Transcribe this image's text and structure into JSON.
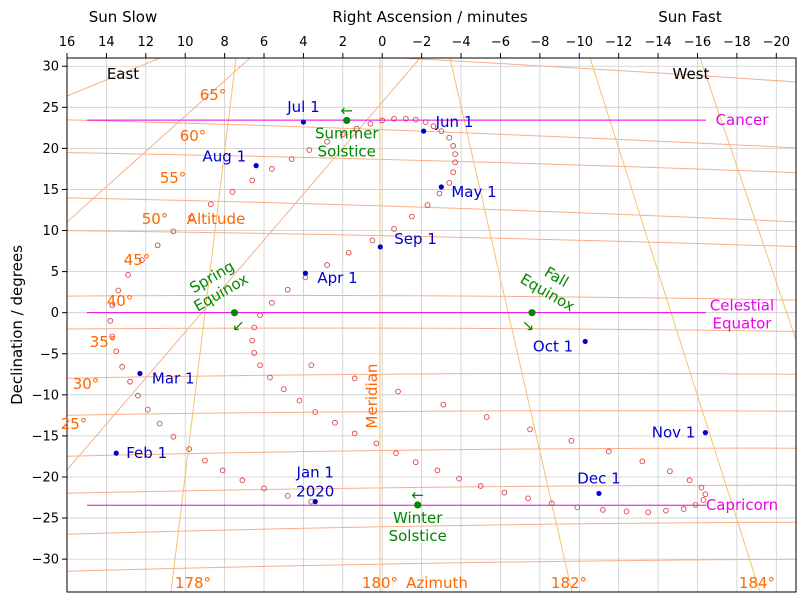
{
  "chart_data": {
    "type": "scatter",
    "title": "Right Ascension / minutes",
    "ylabel": "Declination / degrees",
    "corner_labels": {
      "left": "Sun Slow",
      "right": "Sun Fast"
    },
    "horizon_labels": {
      "east": "East",
      "west": "West"
    },
    "meridian_label": "Meridian",
    "altitude_caption": "Altitude",
    "azimuth_caption": "Azimuth",
    "xlim": [
      16,
      -21
    ],
    "ylim": [
      -34,
      31
    ],
    "x_ticks": [
      16,
      14,
      12,
      10,
      8,
      6,
      4,
      2,
      0,
      -2,
      -4,
      -6,
      -8,
      -10,
      -12,
      -14,
      -16,
      -18,
      -20
    ],
    "x_tick_labels": [
      "16",
      "14",
      "12",
      "10",
      "8",
      "6",
      "4",
      "2",
      "0",
      "−2",
      "−4",
      "−6",
      "−8",
      "−10",
      "−12",
      "−14",
      "−16",
      "−18",
      "−20"
    ],
    "y_ticks": [
      30,
      25,
      20,
      15,
      10,
      5,
      0,
      -5,
      -10,
      -15,
      -20,
      -25,
      -30
    ],
    "y_tick_labels": [
      "30",
      "25",
      "20",
      "15",
      "10",
      "5",
      "0",
      "−5",
      "−10",
      "−15",
      "−20",
      "−25",
      "−30"
    ],
    "grid": true,
    "analemma": {
      "x": [
        3.6,
        4.8,
        6.0,
        7.1,
        8.1,
        9.0,
        9.8,
        10.6,
        11.3,
        11.9,
        12.4,
        12.8,
        13.2,
        13.5,
        13.7,
        13.8,
        13.7,
        13.4,
        12.9,
        12.2,
        11.4,
        10.6,
        9.7,
        8.7,
        7.6,
        6.6,
        5.6,
        4.6,
        3.7,
        2.8,
        2.0,
        1.3,
        0.6,
        0.0,
        -0.6,
        -1.2,
        -1.7,
        -2.2,
        -2.6,
        -3.0,
        -3.4,
        -3.6,
        -3.7,
        -3.7,
        -3.6,
        -3.4,
        -2.9,
        -2.3,
        -1.5,
        -0.6,
        0.5,
        1.7,
        2.8,
        3.9,
        4.8,
        5.6,
        6.2,
        6.5,
        6.6,
        6.5,
        6.2,
        5.7,
        5.0,
        4.2,
        3.4,
        2.4,
        1.4,
        0.3,
        -0.7,
        -1.7,
        -2.8,
        -3.9,
        -5.0,
        -6.2,
        -7.4,
        -8.6,
        -9.9,
        -11.2,
        -12.4,
        -13.5,
        -14.4,
        -15.3,
        -15.9,
        -16.3,
        -16.4,
        -16.2,
        -15.6,
        -14.6,
        -13.2,
        -11.5,
        -9.6,
        -7.5,
        -5.3,
        -3.1,
        -0.8,
        1.4,
        3.6
      ],
      "y": [
        -23.0,
        -22.3,
        -21.4,
        -20.4,
        -19.2,
        -18.0,
        -16.6,
        -15.1,
        -13.5,
        -11.8,
        -10.1,
        -8.4,
        -6.6,
        -4.7,
        -2.9,
        -1.0,
        0.9,
        2.7,
        4.6,
        6.4,
        8.2,
        9.9,
        11.6,
        13.2,
        14.7,
        16.1,
        17.5,
        18.7,
        19.8,
        20.8,
        21.7,
        22.4,
        23.0,
        23.4,
        23.6,
        23.6,
        23.5,
        23.2,
        22.7,
        22.1,
        21.3,
        20.3,
        19.3,
        18.3,
        17.1,
        15.8,
        14.5,
        13.1,
        11.7,
        10.2,
        8.8,
        7.3,
        5.8,
        4.3,
        2.8,
        1.2,
        -0.3,
        -1.8,
        -3.4,
        -4.9,
        -6.4,
        -7.9,
        -9.3,
        -10.7,
        -12.1,
        -13.4,
        -14.7,
        -15.9,
        -17.1,
        -18.2,
        -19.2,
        -20.2,
        -21.1,
        -21.9,
        -22.6,
        -23.2,
        -23.7,
        -24.0,
        -24.2,
        -24.3,
        -24.1,
        -23.9,
        -23.4,
        -22.8,
        -22.1,
        -21.3,
        -20.4,
        -19.3,
        -18.1,
        -16.9,
        -15.6,
        -14.2,
        -12.7,
        -11.2,
        -9.6,
        -8.0,
        -6.4
      ],
      "color": "#dd4444"
    },
    "month_points": [
      {
        "label": "Jan 1",
        "label2": "2020",
        "x": 3.4,
        "y": -23.0,
        "color": "#0000cc"
      },
      {
        "label": "Feb 1",
        "x": 13.5,
        "y": -17.1,
        "color": "#0000cc"
      },
      {
        "label": "Mar 1",
        "x": 12.3,
        "y": -7.4,
        "color": "#0000cc"
      },
      {
        "label": "Apr 1",
        "x": 3.9,
        "y": 4.8,
        "color": "#0000cc"
      },
      {
        "label": "May 1",
        "x": -3.0,
        "y": 15.3,
        "color": "#0000cc"
      },
      {
        "label": "Jun 1",
        "x": -2.1,
        "y": 22.1,
        "color": "#0000cc"
      },
      {
        "label": "Jul 1",
        "x": 4.0,
        "y": 23.2,
        "color": "#0000cc"
      },
      {
        "label": "Aug 1",
        "x": 6.4,
        "y": 17.9,
        "color": "#0000cc"
      },
      {
        "label": "Sep 1",
        "x": 0.1,
        "y": 8.0,
        "color": "#0000cc"
      },
      {
        "label": "Oct 1",
        "x": -10.3,
        "y": -3.5,
        "color": "#0000cc"
      },
      {
        "label": "Nov 1",
        "x": -16.4,
        "y": -14.6,
        "color": "#0000cc"
      },
      {
        "label": "Dec 1",
        "x": -11.0,
        "y": -22.0,
        "color": "#0000cc"
      }
    ],
    "events": [
      {
        "line1": "Summer",
        "line2": "Solstice",
        "arrow": "←",
        "x": 1.8,
        "y": 23.4,
        "color": "#008800"
      },
      {
        "line1": "Spring",
        "line2": "Equinox",
        "arrow": "↙",
        "x": 7.5,
        "y": 0.0,
        "color": "#008800"
      },
      {
        "line1": "Fall",
        "line2": "Equinox",
        "arrow": "↘",
        "x": -7.6,
        "y": 0.0,
        "color": "#008800"
      },
      {
        "line1": "Winter",
        "line2": "Solstice",
        "arrow": "←",
        "x": -1.8,
        "y": -23.4,
        "color": "#008800"
      }
    ],
    "reference_lines": [
      {
        "label": "Cancer",
        "y": 23.44,
        "color": "#ee00ee"
      },
      {
        "label": "Celestial",
        "label2": "Equator",
        "y": 0,
        "color": "#ee00ee"
      },
      {
        "label": "Capricorn",
        "y": -23.44,
        "color": "#ee00ee"
      }
    ],
    "altitude_labels": [
      "65°",
      "60°",
      "55°",
      "50°",
      "45°",
      "40°",
      "35°",
      "30°",
      "25°"
    ],
    "azimuth_labels": [
      "178°",
      "180°",
      "182°",
      "184°"
    ],
    "colors": {
      "grid": "#cccccc",
      "frame": "#000000",
      "altitude": "#ff6600",
      "altitude_line": "#f7b089",
      "azimuth_line": "#f5c26b"
    }
  }
}
